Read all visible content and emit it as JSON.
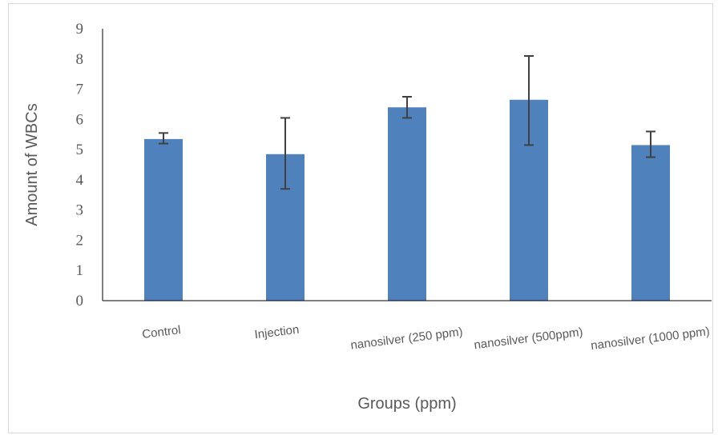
{
  "chart_data": {
    "type": "bar",
    "title": "",
    "xlabel": "Groups (ppm)",
    "ylabel": "Amount of WBCs",
    "categories": [
      "Control",
      "Injection",
      "nanosilver (250 ppm)",
      "nanosilver (500ppm)",
      "nanosilver (1000 ppm)"
    ],
    "values": [
      5.35,
      4.85,
      6.4,
      6.65,
      5.15
    ],
    "error_upper": [
      5.55,
      6.05,
      6.75,
      8.1,
      5.6
    ],
    "error_lower": [
      5.2,
      3.7,
      6.05,
      5.15,
      4.75
    ],
    "ylim": [
      0,
      9
    ],
    "yticks": [
      "0",
      "1",
      "2",
      "3",
      "4",
      "5",
      "6",
      "7",
      "8",
      "9"
    ],
    "grid": false,
    "legend": "none",
    "bar_color": "#4f81bd",
    "error_bar_color": "#404040",
    "axis_color": "#000000"
  }
}
